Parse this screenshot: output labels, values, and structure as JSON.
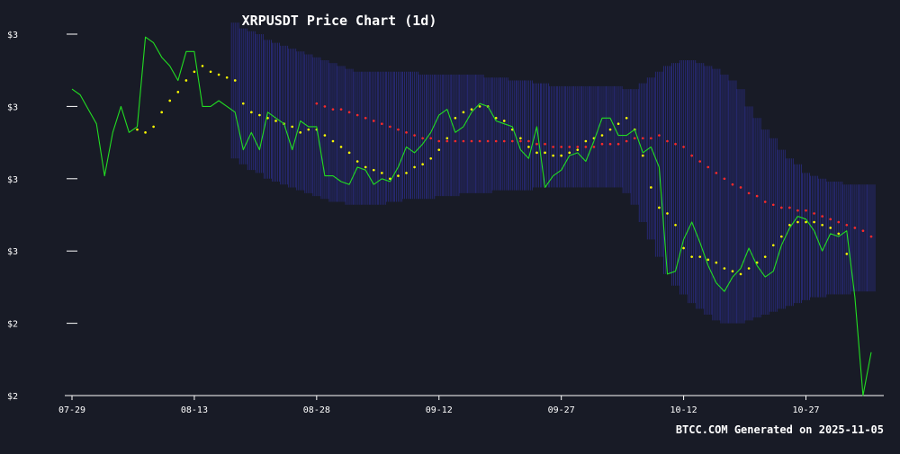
{
  "chart_data": {
    "type": "line",
    "title": "XRPUSDT Price Chart (1d)",
    "footer": "BTCC.COM Generated on 2025-11-05",
    "x_tick_labels": [
      "07-29",
      "08-13",
      "08-28",
      "09-12",
      "09-27",
      "10-12",
      "10-27"
    ],
    "x_ticks_day_index": [
      0,
      15,
      30,
      45,
      60,
      75,
      90
    ],
    "y_tick_labels": [
      "$2",
      "$2",
      "$3",
      "$3",
      "$3",
      "$3"
    ],
    "y_ticks_value": [
      2.0,
      2.25,
      2.5,
      2.75,
      3.0,
      3.25
    ],
    "ylim": [
      2.0,
      3.25
    ],
    "xlim_day_index": [
      -1,
      99
    ],
    "grid": false,
    "colors": {
      "background": "#181b26",
      "price": "#22dd22",
      "sma20": "#ffff00",
      "sma50": "#ff2a2a",
      "bollinger": "#2b2d8a",
      "axis": "#ffffff",
      "text": "#ffffff"
    },
    "series": [
      {
        "key": "price",
        "style": "line",
        "start_index": 0,
        "values": [
          3.06,
          3.04,
          2.99,
          2.94,
          2.76,
          2.91,
          3.0,
          2.91,
          2.93,
          3.24,
          3.22,
          3.17,
          3.14,
          3.09,
          3.19,
          3.19,
          3.0,
          3.0,
          3.02,
          3.0,
          2.98,
          2.85,
          2.91,
          2.85,
          2.98,
          2.96,
          2.94,
          2.85,
          2.95,
          2.93,
          2.93,
          2.76,
          2.76,
          2.74,
          2.73,
          2.79,
          2.78,
          2.73,
          2.75,
          2.74,
          2.79,
          2.86,
          2.84,
          2.87,
          2.91,
          2.97,
          2.99,
          2.91,
          2.93,
          2.98,
          3.01,
          3.0,
          2.95,
          2.94,
          2.93,
          2.85,
          2.82,
          2.93,
          2.72,
          2.76,
          2.78,
          2.83,
          2.84,
          2.81,
          2.88,
          2.96,
          2.96,
          2.9,
          2.9,
          2.92,
          2.84,
          2.86,
          2.79,
          2.42,
          2.43,
          2.54,
          2.6,
          2.53,
          2.45,
          2.39,
          2.36,
          2.41,
          2.44,
          2.51,
          2.45,
          2.41,
          2.43,
          2.52,
          2.58,
          2.62,
          2.61,
          2.57,
          2.5,
          2.56,
          2.55,
          2.57,
          2.34,
          2.0,
          2.15
        ]
      },
      {
        "key": "sma20",
        "style": "dots",
        "start_index": 5,
        "values": [
          null,
          null,
          null,
          2.92,
          2.91,
          2.93,
          2.98,
          3.02,
          3.05,
          3.09,
          3.12,
          3.14,
          3.12,
          3.11,
          3.1,
          3.09,
          3.01,
          2.98,
          2.97,
          2.96,
          2.95,
          2.94,
          2.93,
          2.91,
          2.92,
          2.92,
          2.9,
          2.88,
          2.86,
          2.84,
          2.81,
          2.79,
          2.78,
          2.77,
          2.75,
          2.76,
          2.77,
          2.79,
          2.8,
          2.82,
          2.85,
          2.89,
          2.96,
          2.98,
          2.99,
          3.0,
          3.0,
          2.96,
          2.95,
          2.92,
          2.89,
          2.86,
          2.84,
          2.84,
          2.83,
          2.83,
          2.84,
          2.85,
          2.88,
          2.89,
          2.9,
          2.92,
          2.94,
          2.96,
          2.92,
          2.83,
          2.72,
          2.65,
          2.63,
          2.59,
          2.51,
          2.48,
          2.48,
          2.47,
          2.46,
          2.44,
          2.43,
          2.42,
          2.44,
          2.46,
          2.48,
          2.52,
          2.55,
          2.59,
          2.6,
          2.6,
          2.6,
          2.59,
          2.58,
          2.56,
          2.49
        ]
      },
      {
        "key": "sma50",
        "style": "dots",
        "start_index": 30,
        "values": [
          3.01,
          3.0,
          2.99,
          2.99,
          2.98,
          2.97,
          2.96,
          2.95,
          2.94,
          2.93,
          2.92,
          2.91,
          2.9,
          2.89,
          2.89,
          2.88,
          2.88,
          2.88,
          2.88,
          2.88,
          2.88,
          2.88,
          2.88,
          2.88,
          2.88,
          2.88,
          2.88,
          2.87,
          2.87,
          2.86,
          2.86,
          2.86,
          2.86,
          2.86,
          2.86,
          2.87,
          2.87,
          2.87,
          2.88,
          2.89,
          2.89,
          2.89,
          2.9,
          2.88,
          2.87,
          2.86,
          2.83,
          2.81,
          2.79,
          2.77,
          2.75,
          2.73,
          2.72,
          2.7,
          2.69,
          2.67,
          2.66,
          2.65,
          2.65,
          2.64,
          2.64,
          2.63,
          2.62,
          2.61,
          2.6,
          2.59,
          2.58,
          2.57,
          2.55
        ]
      },
      {
        "key": "bollinger",
        "style": "band",
        "start_index": 20,
        "upper": [
          3.29,
          3.27,
          3.26,
          3.25,
          3.23,
          3.22,
          3.21,
          3.2,
          3.19,
          3.18,
          3.17,
          3.16,
          3.15,
          3.14,
          3.13,
          3.12,
          3.12,
          3.12,
          3.12,
          3.12,
          3.12,
          3.12,
          3.12,
          3.11,
          3.11,
          3.11,
          3.11,
          3.11,
          3.11,
          3.11,
          3.11,
          3.1,
          3.1,
          3.1,
          3.09,
          3.09,
          3.09,
          3.08,
          3.08,
          3.07,
          3.07,
          3.07,
          3.07,
          3.07,
          3.07,
          3.07,
          3.07,
          3.07,
          3.06,
          3.06,
          3.08,
          3.1,
          3.12,
          3.14,
          3.15,
          3.16,
          3.16,
          3.15,
          3.14,
          3.13,
          3.11,
          3.09,
          3.06,
          3.0,
          2.96,
          2.92,
          2.89,
          2.85,
          2.82,
          2.8,
          2.77,
          2.76,
          2.75,
          2.74,
          2.74,
          2.73,
          2.73,
          2.73,
          2.73
        ],
        "lower": [
          2.82,
          2.8,
          2.78,
          2.77,
          2.75,
          2.74,
          2.73,
          2.72,
          2.71,
          2.7,
          2.69,
          2.68,
          2.67,
          2.67,
          2.66,
          2.66,
          2.66,
          2.66,
          2.66,
          2.67,
          2.67,
          2.68,
          2.68,
          2.68,
          2.68,
          2.69,
          2.69,
          2.69,
          2.7,
          2.7,
          2.7,
          2.7,
          2.71,
          2.71,
          2.71,
          2.71,
          2.71,
          2.72,
          2.72,
          2.72,
          2.72,
          2.72,
          2.72,
          2.72,
          2.72,
          2.72,
          2.72,
          2.72,
          2.7,
          2.66,
          2.6,
          2.54,
          2.48,
          2.42,
          2.38,
          2.35,
          2.32,
          2.3,
          2.28,
          2.26,
          2.25,
          2.25,
          2.25,
          2.26,
          2.27,
          2.28,
          2.29,
          2.3,
          2.31,
          2.32,
          2.33,
          2.34,
          2.34,
          2.35,
          2.35,
          2.35,
          2.36,
          2.36,
          2.36
        ]
      }
    ]
  }
}
